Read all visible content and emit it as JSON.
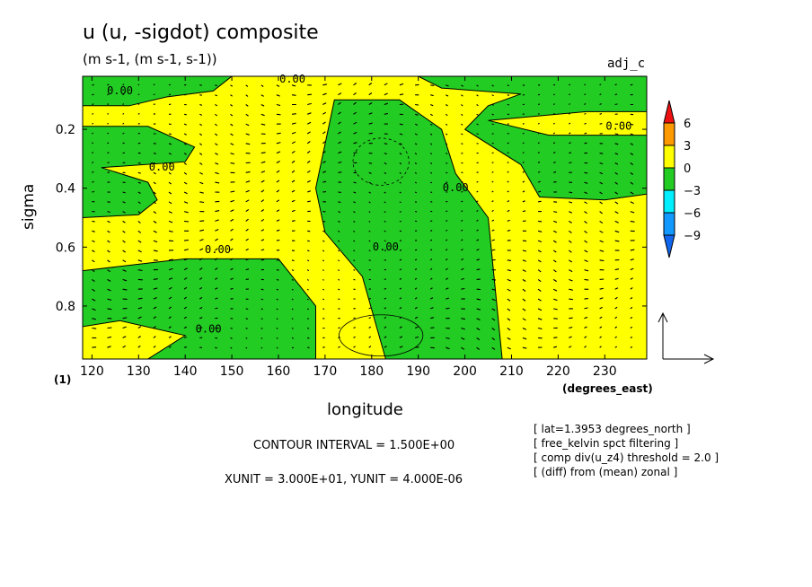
{
  "figure": {
    "title": "u (u, -sigdot) composite",
    "subtitle": "(m s-1, (m s-1, s-1))",
    "tag": "adj_c",
    "xunits_label": "(degrees_east)",
    "sigma_unit_label": "(1)",
    "contour_interval": "CONTOUR INTERVAL = 1.500E+00",
    "vector_units": "XUNIT = 3.000E+01, YUNIT = 4.000E-06",
    "notes": [
      "[ lat=1.3953 degrees_north ]",
      "[ free_kelvin spct filtering ]",
      "[ comp div(u_z4) threshold = 2.0 ]",
      "[ (diff) from (mean) zonal ]"
    ]
  },
  "chart_data": {
    "type": "heatmap",
    "title": "u (u, -sigdot) composite",
    "xlabel": "longitude",
    "ylabel": "sigma",
    "xlim": [
      118,
      239
    ],
    "ylim": [
      0.98,
      0.02
    ],
    "xticks": [
      120,
      130,
      140,
      150,
      160,
      170,
      180,
      190,
      200,
      210,
      220,
      230
    ],
    "yticks": [
      0.2,
      0.4,
      0.6,
      0.8
    ],
    "colorbar": {
      "levels": [
        6,
        3,
        0,
        -3,
        -6,
        -9
      ],
      "colors": [
        "#ee1111",
        "#ff9900",
        "#ffff00",
        "#22cc22",
        "#00eeff",
        "#1199ff",
        "#1166ee"
      ]
    },
    "contour_labels": [
      {
        "text": "0.00",
        "lon": 126,
        "sigma": 0.07
      },
      {
        "text": "0.00",
        "lon": 163,
        "sigma": 0.03
      },
      {
        "text": "0.00",
        "lon": 233,
        "sigma": 0.19
      },
      {
        "text": "0.00",
        "lon": 135,
        "sigma": 0.33
      },
      {
        "text": "0.00",
        "lon": 198,
        "sigma": 0.4
      },
      {
        "text": "0.00",
        "lon": 147,
        "sigma": 0.61
      },
      {
        "text": "0.00",
        "lon": 183,
        "sigma": 0.6
      },
      {
        "text": "0.00",
        "lon": 145,
        "sigma": 0.88
      }
    ],
    "regions": [
      {
        "name": "green",
        "value_range": [
          -3,
          0
        ],
        "polygon_lonsigma": [
          [
            118,
            0.02
          ],
          [
            150,
            0.02
          ],
          [
            146,
            0.07
          ],
          [
            136,
            0.09
          ],
          [
            128,
            0.12
          ],
          [
            118,
            0.12
          ]
        ]
      },
      {
        "name": "green",
        "value_range": [
          -3,
          0
        ],
        "polygon_lonsigma": [
          [
            118,
            0.19
          ],
          [
            132,
            0.19
          ],
          [
            142,
            0.26
          ],
          [
            140,
            0.31
          ],
          [
            122,
            0.33
          ],
          [
            132,
            0.38
          ],
          [
            134,
            0.44
          ],
          [
            130,
            0.49
          ],
          [
            118,
            0.5
          ]
        ]
      },
      {
        "name": "green",
        "value_range": [
          -3,
          0
        ],
        "polygon_lonsigma": [
          [
            118,
            0.68
          ],
          [
            140,
            0.64
          ],
          [
            160,
            0.64
          ],
          [
            168,
            0.8
          ],
          [
            168,
            0.98
          ],
          [
            132,
            0.98
          ],
          [
            140,
            0.9
          ],
          [
            126,
            0.85
          ],
          [
            118,
            0.87
          ]
        ]
      },
      {
        "name": "green",
        "value_range": [
          -3,
          0
        ],
        "polygon_lonsigma": [
          [
            172,
            0.1
          ],
          [
            186,
            0.1
          ],
          [
            195,
            0.2
          ],
          [
            198,
            0.35
          ],
          [
            205,
            0.5
          ],
          [
            208,
            0.98
          ],
          [
            183,
            0.98
          ],
          [
            178,
            0.7
          ],
          [
            170,
            0.55
          ],
          [
            168,
            0.4
          ],
          [
            170,
            0.25
          ]
        ]
      },
      {
        "name": "green",
        "value_range": [
          -3,
          0
        ],
        "polygon_lonsigma": [
          [
            205,
            0.17
          ],
          [
            226,
            0.14
          ],
          [
            239,
            0.14
          ],
          [
            239,
            0.02
          ],
          [
            190,
            0.02
          ],
          [
            195,
            0.06
          ],
          [
            212,
            0.08
          ],
          [
            205,
            0.12
          ],
          [
            200,
            0.2
          ],
          [
            212,
            0.32
          ],
          [
            216,
            0.43
          ],
          [
            230,
            0.44
          ],
          [
            239,
            0.42
          ],
          [
            239,
            0.22
          ],
          [
            218,
            0.22
          ]
        ]
      }
    ],
    "dashed_contours": [
      {
        "center_lon": 182,
        "center_sigma": 0.31,
        "rx": 6,
        "ry": 0.08
      }
    ],
    "solid_contours": [
      {
        "center_lon": 182,
        "center_sigma": 0.9,
        "rx": 9,
        "ry": 0.07
      }
    ],
    "vector_reference": {
      "x": "XUNIT",
      "y": "YUNIT"
    }
  }
}
